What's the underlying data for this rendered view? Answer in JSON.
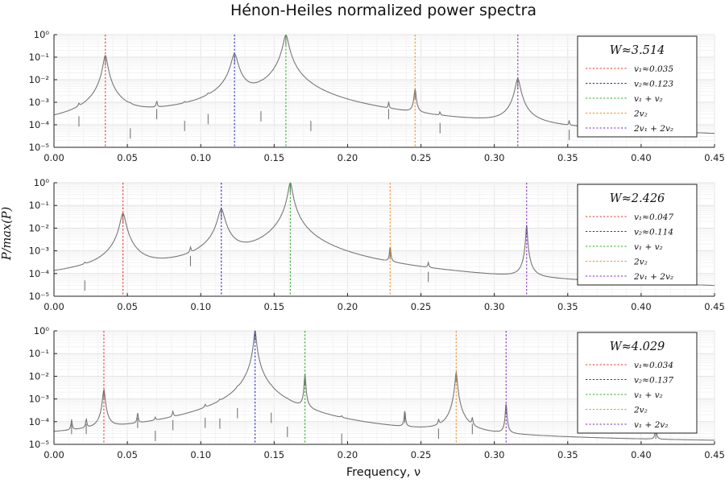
{
  "chart_data": {
    "title": "Hénon-Heiles normalized power spectra",
    "xlabel": "Frequency, ν",
    "ylabel": "P/max(P)",
    "xlim": [
      0,
      0.45
    ],
    "ylim": [
      1e-05,
      1
    ],
    "yscale": "log",
    "xticks": [
      "0.00",
      "0.05",
      "0.10",
      "0.15",
      "0.20",
      "0.25",
      "0.30",
      "0.35",
      "0.40",
      "0.45"
    ],
    "yticks": [
      "10⁻⁵",
      "10⁻⁴",
      "10⁻³",
      "10⁻²",
      "10⁻¹",
      "10⁰"
    ],
    "grid": true,
    "legend_placement": "top-right",
    "spectrum_color": "#777777",
    "panels": [
      {
        "type": "line",
        "legend_title": "W≈3.514",
        "lines": [
          {
            "label": "v₁≈0.035",
            "x": 0.035,
            "color": "#e8312f"
          },
          {
            "label": "v₂≈0.123",
            "x": 0.123,
            "color": "#2222c8"
          },
          {
            "label": "v₁ + v₂",
            "x": 0.158,
            "color": "#2aa82a"
          },
          {
            "label": "2v₂",
            "x": 0.246,
            "color": "#f08a1c"
          },
          {
            "label": "2v₁ + 2v₂",
            "x": 0.316,
            "color": "#7a2bbf"
          }
        ],
        "baseline": [
          [
            0.0,
            1.8e-05
          ],
          [
            0.017,
            1.8e-05
          ],
          [
            0.06,
            4e-05
          ],
          [
            0.1,
            6e-05
          ],
          [
            0.14,
            0.00025
          ],
          [
            0.18,
            0.00015
          ],
          [
            0.22,
            8e-05
          ],
          [
            0.26,
            4e-05
          ],
          [
            0.3,
            2.5e-05
          ],
          [
            0.35,
            1.2e-05
          ],
          [
            0.45,
            1e-05
          ]
        ],
        "peaks": [
          {
            "x": 0.035,
            "y": 0.12,
            "w": 0.0012
          },
          {
            "x": 0.123,
            "y": 0.14,
            "w": 0.0018
          },
          {
            "x": 0.158,
            "y": 0.95,
            "w": 0.0015
          },
          {
            "x": 0.246,
            "y": 0.0035,
            "w": 0.0006
          },
          {
            "x": 0.316,
            "y": 0.011,
            "w": 0.0014
          },
          {
            "x": 0.017,
            "y": 0.00024,
            "w": 0.0004
          },
          {
            "x": 0.052,
            "y": 7e-05,
            "w": 0.0004
          },
          {
            "x": 0.07,
            "y": 0.0005,
            "w": 0.0004
          },
          {
            "x": 0.089,
            "y": 0.00015,
            "w": 0.0004
          },
          {
            "x": 0.105,
            "y": 0.0003,
            "w": 0.0005
          },
          {
            "x": 0.141,
            "y": 0.0004,
            "w": 0.0005
          },
          {
            "x": 0.175,
            "y": 0.00015,
            "w": 0.0004
          },
          {
            "x": 0.228,
            "y": 0.0005,
            "w": 0.0003
          },
          {
            "x": 0.263,
            "y": 0.00012,
            "w": 0.0003
          },
          {
            "x": 0.351,
            "y": 6e-05,
            "w": 0.0003
          }
        ]
      },
      {
        "type": "line",
        "legend_title": "W≈2.426",
        "lines": [
          {
            "label": "v₁≈0.047",
            "x": 0.047,
            "color": "#e8312f"
          },
          {
            "label": "v₂≈0.114",
            "x": 0.114,
            "color": "#2222c8"
          },
          {
            "label": "v₁ + v₂",
            "x": 0.161,
            "color": "#2aa82a"
          },
          {
            "label": "2v₂",
            "x": 0.229,
            "color": "#f08a1c"
          },
          {
            "label": "2v₁ + 2v₂",
            "x": 0.322,
            "color": "#7a2bbf"
          }
        ],
        "baseline": [
          [
            0.0,
            1.8e-05
          ],
          [
            0.03,
            2.5e-05
          ],
          [
            0.045,
            0.0001
          ],
          [
            0.05,
            0.0001
          ],
          [
            0.06,
            1.2e-05
          ],
          [
            0.095,
            1e-05
          ],
          [
            0.1,
            6e-05
          ],
          [
            0.13,
            6e-05
          ],
          [
            0.14,
            1e-05
          ],
          [
            0.15,
            3e-05
          ],
          [
            0.175,
            3e-05
          ],
          [
            0.18,
            1e-05
          ],
          [
            0.45,
            1e-05
          ]
        ],
        "peaks": [
          {
            "x": 0.047,
            "y": 0.045,
            "w": 0.0015
          },
          {
            "x": 0.114,
            "y": 0.07,
            "w": 0.0018
          },
          {
            "x": 0.161,
            "y": 1.0,
            "w": 0.0012
          },
          {
            "x": 0.229,
            "y": 0.0012,
            "w": 0.0004
          },
          {
            "x": 0.322,
            "y": 0.014,
            "w": 0.0004
          },
          {
            "x": 0.021,
            "y": 5e-05,
            "w": 0.0004
          },
          {
            "x": 0.093,
            "y": 0.0006,
            "w": 0.0004
          },
          {
            "x": 0.255,
            "y": 0.00012,
            "w": 0.0004
          }
        ]
      },
      {
        "type": "line",
        "legend_title": "W≈4.029",
        "lines": [
          {
            "label": "v₁≈0.034",
            "x": 0.034,
            "color": "#e8312f"
          },
          {
            "label": "v₂≈0.137",
            "x": 0.137,
            "color": "#2222c8"
          },
          {
            "label": "v₁ + v₂",
            "x": 0.171,
            "color": "#2aa82a"
          },
          {
            "label": "2v₂",
            "x": 0.274,
            "color": "#f08a1c"
          },
          {
            "label": "v₁ + 2v₂",
            "x": 0.308,
            "color": "#7a2bbf"
          }
        ],
        "baseline": [
          [
            0.0,
            1e-05
          ],
          [
            0.45,
            1e-05
          ]
        ],
        "peaks": [
          {
            "x": 0.034,
            "y": 0.0025,
            "w": 0.0007
          },
          {
            "x": 0.137,
            "y": 1.0,
            "w": 0.0007
          },
          {
            "x": 0.171,
            "y": 0.012,
            "w": 0.0004
          },
          {
            "x": 0.274,
            "y": 0.015,
            "w": 0.0006
          },
          {
            "x": 0.308,
            "y": 0.0006,
            "w": 0.0004
          },
          {
            "x": 0.012,
            "y": 8e-05,
            "w": 0.0004
          },
          {
            "x": 0.022,
            "y": 8e-05,
            "w": 0.0004
          },
          {
            "x": 0.057,
            "y": 0.00015,
            "w": 0.0004
          },
          {
            "x": 0.069,
            "y": 4e-05,
            "w": 0.0004
          },
          {
            "x": 0.081,
            "y": 0.00012,
            "w": 0.0004
          },
          {
            "x": 0.103,
            "y": 0.00015,
            "w": 0.0004
          },
          {
            "x": 0.113,
            "y": 0.00014,
            "w": 0.0004
          },
          {
            "x": 0.125,
            "y": 0.0004,
            "w": 0.0004
          },
          {
            "x": 0.148,
            "y": 0.00025,
            "w": 0.0004
          },
          {
            "x": 0.159,
            "y": 6e-05,
            "w": 0.0004
          },
          {
            "x": 0.196,
            "y": 3e-05,
            "w": 0.0004
          },
          {
            "x": 0.239,
            "y": 0.00025,
            "w": 0.0004
          },
          {
            "x": 0.262,
            "y": 5e-05,
            "w": 0.0004
          },
          {
            "x": 0.285,
            "y": 8e-05,
            "w": 0.0004
          },
          {
            "x": 0.41,
            "y": 5e-05,
            "w": 0.0004
          }
        ]
      }
    ]
  }
}
